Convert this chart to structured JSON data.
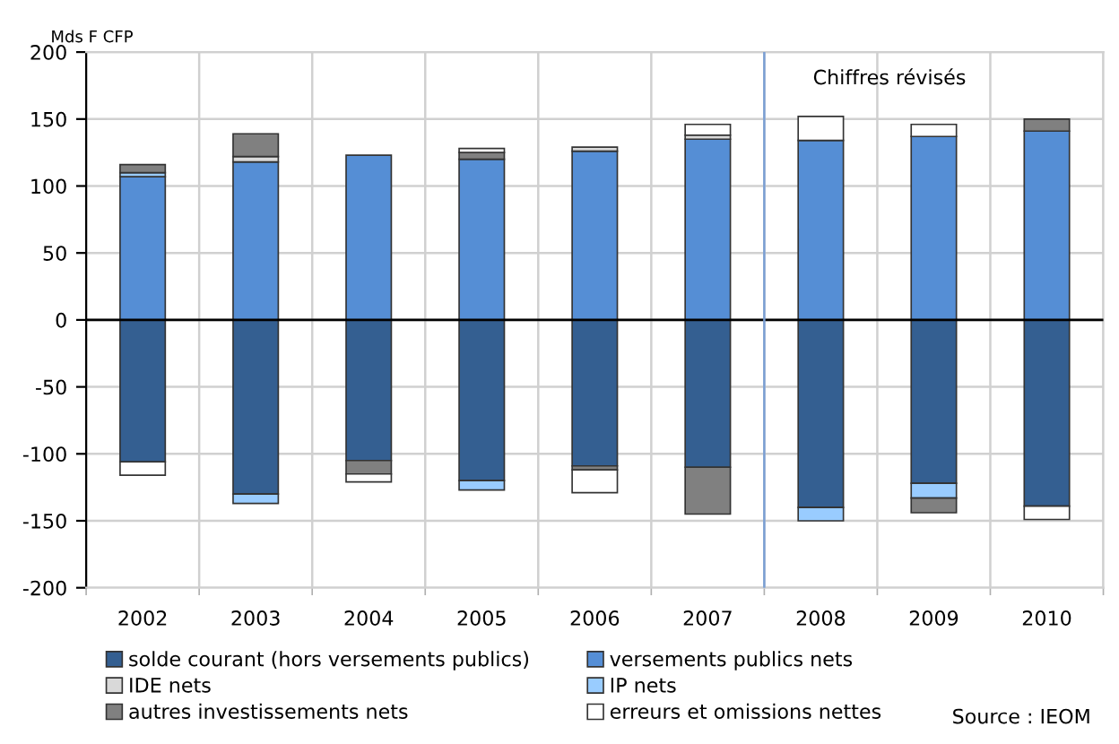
{
  "chart_data": {
    "type": "bar",
    "stacked": true,
    "ylabel": "Mds F CFP",
    "x": [
      2002,
      2003,
      2004,
      2005,
      2006,
      2007,
      2008,
      2009,
      2010
    ],
    "series": [
      {
        "name": "solde courant (hors versements publics)",
        "color": "#345f91",
        "values": [
          -106,
          -130,
          -105,
          -120,
          -109,
          -110,
          -140,
          -122,
          -139
        ]
      },
      {
        "name": "versements publics nets",
        "color": "#558ed5",
        "values": [
          107,
          118,
          123,
          120,
          126,
          135,
          134,
          137,
          141
        ]
      },
      {
        "name": "IDE nets",
        "color": "#d9d9d9",
        "values": [
          null,
          4,
          null,
          null,
          3,
          3,
          null,
          null,
          null
        ]
      },
      {
        "name": "IP nets",
        "color": "#99ccff",
        "values": [
          3,
          -7,
          null,
          -7,
          null,
          null,
          -10,
          -11,
          null
        ]
      },
      {
        "name": "autres investissements nets",
        "color": "#808080",
        "values": [
          6,
          17,
          -10,
          5,
          -3,
          -35,
          null,
          -11,
          9
        ]
      },
      {
        "name": "erreurs et omissions nettes",
        "color": "#ffffff",
        "values": [
          -10,
          null,
          -6,
          3,
          -17,
          8,
          18,
          9,
          -10
        ]
      }
    ],
    "xlim": [
      2001.5,
      2010.5
    ],
    "xticks": [
      {
        "value": 2001.5,
        "label": null
      },
      2002,
      {
        "value": 2002.5,
        "label": null
      },
      2003,
      {
        "value": 2003.5,
        "label": null
      },
      2004,
      {
        "value": 2004.5,
        "label": null
      },
      2005,
      {
        "value": 2005.5,
        "label": null
      },
      2006,
      {
        "value": 2006.5,
        "label": null
      },
      2007,
      {
        "value": 2007.5,
        "label": null
      },
      2008,
      {
        "value": 2008.5,
        "label": null
      },
      2009,
      {
        "value": 2009.5,
        "label": null
      },
      2010,
      {
        "value": 2010.5,
        "label": null
      }
    ],
    "ylim": [
      -200,
      200
    ],
    "yticks": [
      -200,
      -150,
      -100,
      -50,
      0,
      50,
      100,
      150,
      200
    ],
    "grid": true,
    "legend": "bottom",
    "ref_lines": [
      {
        "axis": "x",
        "value": 2007.5,
        "label": "Chiffres révisés",
        "color": "#7a9fd4"
      }
    ],
    "annotations": [
      "Source : IEOM"
    ]
  }
}
